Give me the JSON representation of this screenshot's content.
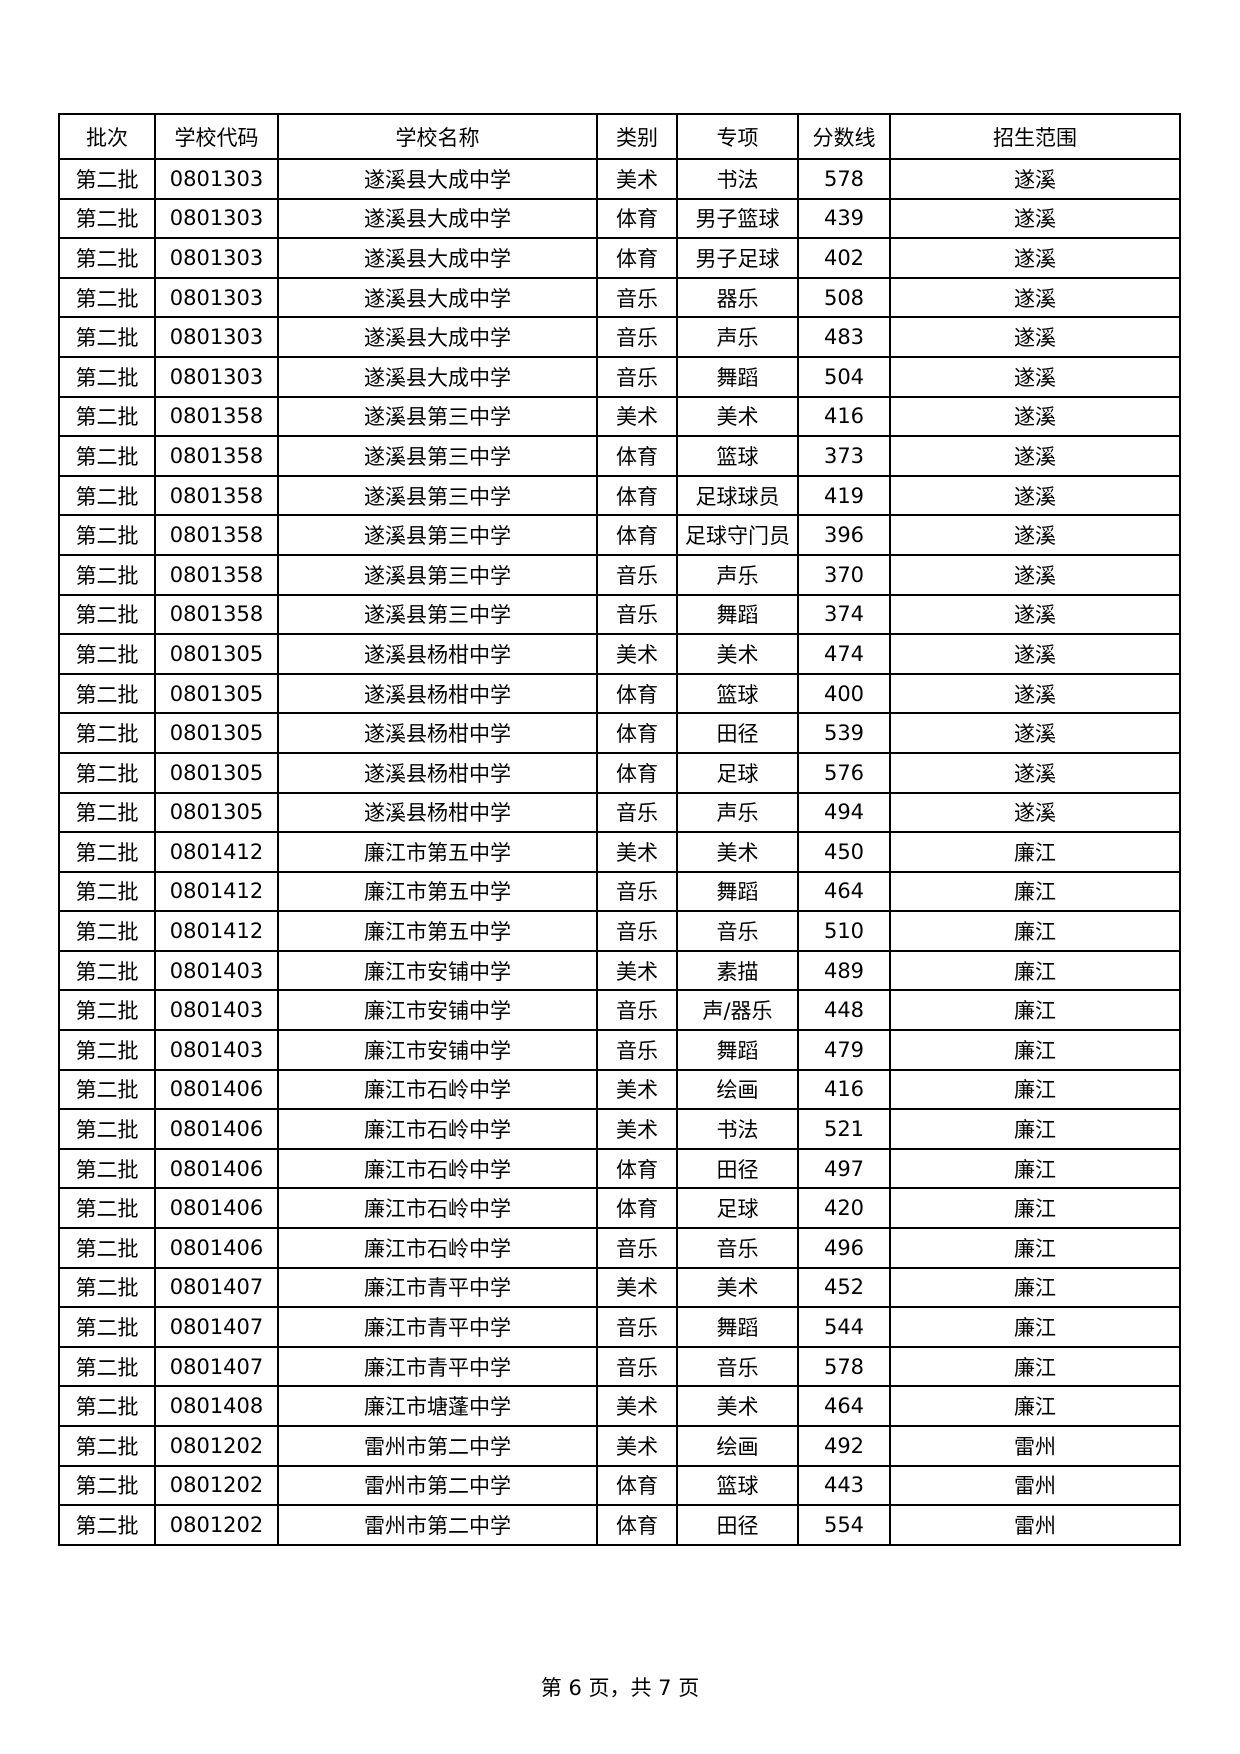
{
  "table": {
    "headers": [
      "批次",
      "学校代码",
      "学校名称",
      "类别",
      "专项",
      "分数线",
      "招生范围"
    ],
    "rows": [
      [
        "第二批",
        "0801303",
        "遂溪县大成中学",
        "美术",
        "书法",
        "578",
        "遂溪"
      ],
      [
        "第二批",
        "0801303",
        "遂溪县大成中学",
        "体育",
        "男子篮球",
        "439",
        "遂溪"
      ],
      [
        "第二批",
        "0801303",
        "遂溪县大成中学",
        "体育",
        "男子足球",
        "402",
        "遂溪"
      ],
      [
        "第二批",
        "0801303",
        "遂溪县大成中学",
        "音乐",
        "器乐",
        "508",
        "遂溪"
      ],
      [
        "第二批",
        "0801303",
        "遂溪县大成中学",
        "音乐",
        "声乐",
        "483",
        "遂溪"
      ],
      [
        "第二批",
        "0801303",
        "遂溪县大成中学",
        "音乐",
        "舞蹈",
        "504",
        "遂溪"
      ],
      [
        "第二批",
        "0801358",
        "遂溪县第三中学",
        "美术",
        "美术",
        "416",
        "遂溪"
      ],
      [
        "第二批",
        "0801358",
        "遂溪县第三中学",
        "体育",
        "篮球",
        "373",
        "遂溪"
      ],
      [
        "第二批",
        "0801358",
        "遂溪县第三中学",
        "体育",
        "足球球员",
        "419",
        "遂溪"
      ],
      [
        "第二批",
        "0801358",
        "遂溪县第三中学",
        "体育",
        "足球守门员",
        "396",
        "遂溪"
      ],
      [
        "第二批",
        "0801358",
        "遂溪县第三中学",
        "音乐",
        "声乐",
        "370",
        "遂溪"
      ],
      [
        "第二批",
        "0801358",
        "遂溪县第三中学",
        "音乐",
        "舞蹈",
        "374",
        "遂溪"
      ],
      [
        "第二批",
        "0801305",
        "遂溪县杨柑中学",
        "美术",
        "美术",
        "474",
        "遂溪"
      ],
      [
        "第二批",
        "0801305",
        "遂溪县杨柑中学",
        "体育",
        "篮球",
        "400",
        "遂溪"
      ],
      [
        "第二批",
        "0801305",
        "遂溪县杨柑中学",
        "体育",
        "田径",
        "539",
        "遂溪"
      ],
      [
        "第二批",
        "0801305",
        "遂溪县杨柑中学",
        "体育",
        "足球",
        "576",
        "遂溪"
      ],
      [
        "第二批",
        "0801305",
        "遂溪县杨柑中学",
        "音乐",
        "声乐",
        "494",
        "遂溪"
      ],
      [
        "第二批",
        "0801412",
        "廉江市第五中学",
        "美术",
        "美术",
        "450",
        "廉江"
      ],
      [
        "第二批",
        "0801412",
        "廉江市第五中学",
        "音乐",
        "舞蹈",
        "464",
        "廉江"
      ],
      [
        "第二批",
        "0801412",
        "廉江市第五中学",
        "音乐",
        "音乐",
        "510",
        "廉江"
      ],
      [
        "第二批",
        "0801403",
        "廉江市安铺中学",
        "美术",
        "素描",
        "489",
        "廉江"
      ],
      [
        "第二批",
        "0801403",
        "廉江市安铺中学",
        "音乐",
        "声/器乐",
        "448",
        "廉江"
      ],
      [
        "第二批",
        "0801403",
        "廉江市安铺中学",
        "音乐",
        "舞蹈",
        "479",
        "廉江"
      ],
      [
        "第二批",
        "0801406",
        "廉江市石岭中学",
        "美术",
        "绘画",
        "416",
        "廉江"
      ],
      [
        "第二批",
        "0801406",
        "廉江市石岭中学",
        "美术",
        "书法",
        "521",
        "廉江"
      ],
      [
        "第二批",
        "0801406",
        "廉江市石岭中学",
        "体育",
        "田径",
        "497",
        "廉江"
      ],
      [
        "第二批",
        "0801406",
        "廉江市石岭中学",
        "体育",
        "足球",
        "420",
        "廉江"
      ],
      [
        "第二批",
        "0801406",
        "廉江市石岭中学",
        "音乐",
        "音乐",
        "496",
        "廉江"
      ],
      [
        "第二批",
        "0801407",
        "廉江市青平中学",
        "美术",
        "美术",
        "452",
        "廉江"
      ],
      [
        "第二批",
        "0801407",
        "廉江市青平中学",
        "音乐",
        "舞蹈",
        "544",
        "廉江"
      ],
      [
        "第二批",
        "0801407",
        "廉江市青平中学",
        "音乐",
        "音乐",
        "578",
        "廉江"
      ],
      [
        "第二批",
        "0801408",
        "廉江市塘蓬中学",
        "美术",
        "美术",
        "464",
        "廉江"
      ],
      [
        "第二批",
        "0801202",
        "雷州市第二中学",
        "美术",
        "绘画",
        "492",
        "雷州"
      ],
      [
        "第二批",
        "0801202",
        "雷州市第二中学",
        "体育",
        "篮球",
        "443",
        "雷州"
      ],
      [
        "第二批",
        "0801202",
        "雷州市第二中学",
        "体育",
        "田径",
        "554",
        "雷州"
      ]
    ]
  },
  "footer": {
    "page_label": "第 6 页，共 7 页"
  }
}
